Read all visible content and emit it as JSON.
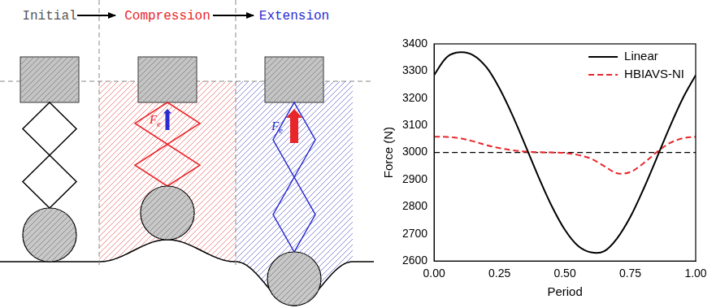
{
  "diagram": {
    "stages": [
      {
        "label": "Initial",
        "color": "#555555"
      },
      {
        "label": "Compression",
        "color": "#e8262a"
      },
      {
        "label": "Extension",
        "color": "#2b2bd0"
      }
    ],
    "force_label": {
      "text": "F",
      "subscript": "e"
    }
  },
  "chart_data": {
    "type": "line",
    "x_label": "Period",
    "y_label": "Force (N)",
    "xlim": [
      0,
      1
    ],
    "xticks": [
      {
        "value": 0,
        "label": "0.00"
      },
      {
        "value": 0.25,
        "label": "0.25"
      },
      {
        "value": 0.5,
        "label": "0.50"
      },
      {
        "value": 0.75,
        "label": "0.75"
      },
      {
        "value": 1,
        "label": "1.00"
      }
    ],
    "ylim": [
      2600,
      3400
    ],
    "yticks": [
      2600,
      2700,
      2800,
      2900,
      3000,
      3100,
      3200,
      3300,
      3400
    ],
    "grid": false,
    "legend": "upper right",
    "marker": "none",
    "x": [
      0,
      0.05,
      0.1,
      0.15,
      0.2,
      0.25,
      0.3,
      0.35,
      0.4,
      0.45,
      0.5,
      0.55,
      0.6,
      0.65,
      0.7,
      0.75,
      0.8,
      0.85,
      0.9,
      0.95,
      1
    ],
    "series": [
      {
        "name": "Linear",
        "color": "#000000",
        "line_style": "solid",
        "values": [
          3285,
          3352,
          3369,
          3358,
          3314,
          3236,
          3136,
          3023,
          2908,
          2802,
          2715,
          2656,
          2632,
          2636,
          2684,
          2762,
          2864,
          2977,
          3092,
          3198,
          3285
        ]
      },
      {
        "name": "HBIAVS-NI",
        "color": "#e8262a",
        "line_style": "dashed",
        "values": [
          3058,
          3057,
          3052,
          3041,
          3027,
          3016,
          3008,
          3003,
          3001,
          3000,
          2998,
          2991,
          2977,
          2950,
          2923,
          2928,
          2960,
          3000,
          3034,
          3052,
          3058
        ]
      }
    ],
    "reference_line": {
      "value": 3000,
      "color": "#000000",
      "line_style": "dashed"
    }
  }
}
